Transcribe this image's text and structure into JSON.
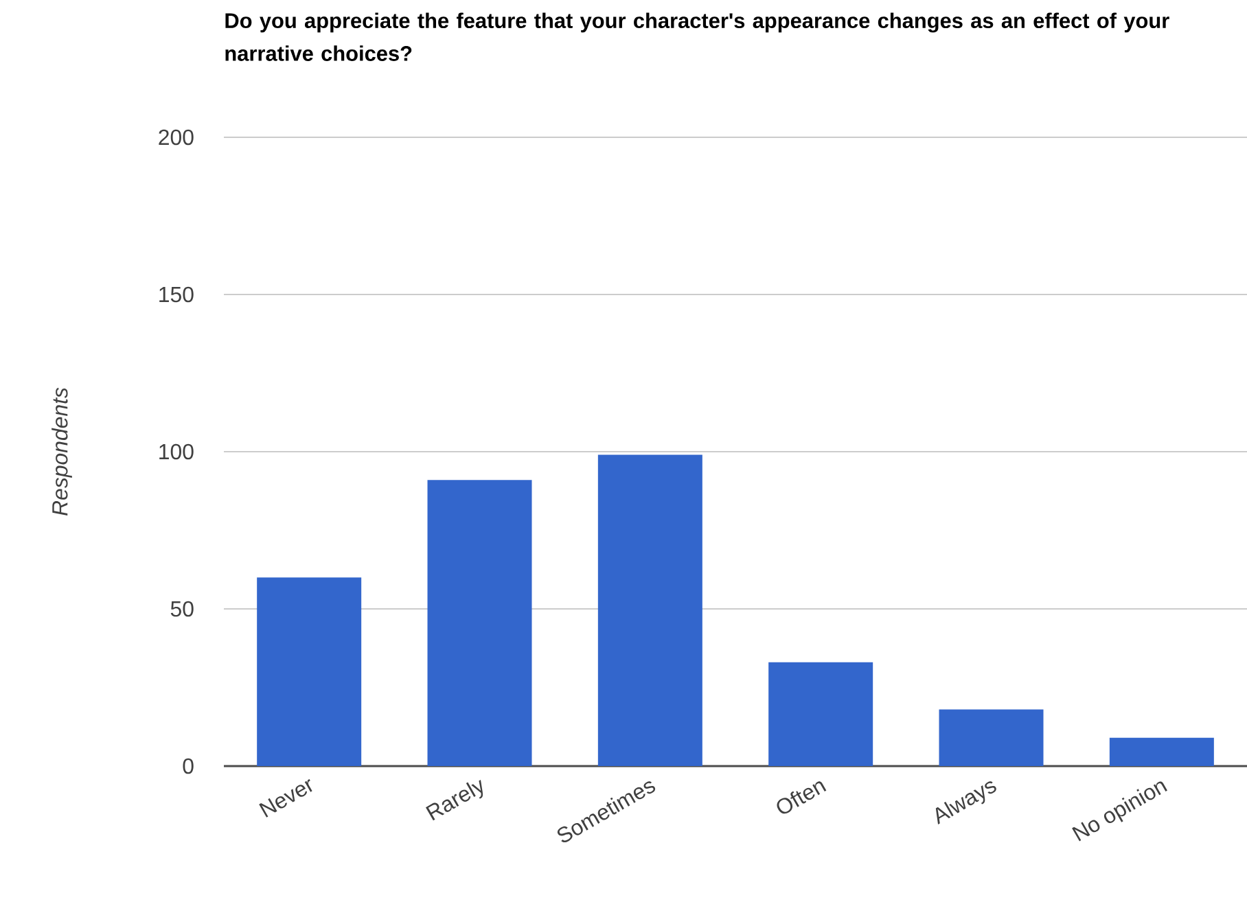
{
  "chart_data": {
    "type": "bar",
    "title": "Do you appreciate the feature that your character's appearance changes as an effect of your narrative choices?",
    "ylabel": "Respondents",
    "categories": [
      "Never",
      "Rarely",
      "Sometimes",
      "Often",
      "Always",
      "No opinion"
    ],
    "values": [
      60,
      91,
      99,
      33,
      18,
      9
    ],
    "color": "#3366cc",
    "ylim": [
      0,
      200
    ],
    "yticks": [
      0,
      50,
      100,
      150,
      200
    ],
    "grid": "y"
  }
}
